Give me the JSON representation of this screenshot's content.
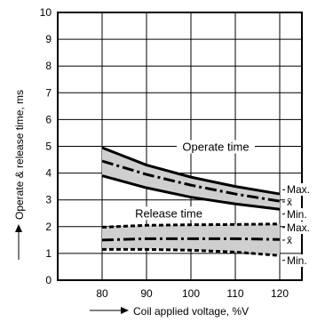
{
  "chart_data": {
    "type": "line",
    "x_ticks": [
      "80",
      "90",
      "100",
      "110",
      "120"
    ],
    "y_ticks": [
      "0",
      "1",
      "2",
      "3",
      "4",
      "5",
      "6",
      "7",
      "8",
      "9",
      "10"
    ],
    "xlim": [
      70,
      125
    ],
    "ylim": [
      0,
      10
    ],
    "xlabel": "Coil applied voltage, %V",
    "ylabel": "Operate & release time, ms",
    "grid": true,
    "groups": [
      {
        "name": "Operate time",
        "fill": "#cfcfcf",
        "x": [
          80,
          90,
          100,
          110,
          120
        ],
        "series": [
          {
            "name": "Max.",
            "style": "solid",
            "y": [
              4.95,
              4.3,
              3.85,
              3.5,
              3.22
            ]
          },
          {
            "name": "x̄",
            "style": "dashdot",
            "y": [
              4.45,
              3.95,
              3.55,
              3.22,
              2.95
            ]
          },
          {
            "name": "Min.",
            "style": "solid",
            "y": [
              3.9,
              3.45,
              3.1,
              2.85,
              2.65
            ]
          }
        ]
      },
      {
        "name": "Release time",
        "fill": "#cfcfcf",
        "x": [
          80,
          90,
          100,
          110,
          120
        ],
        "series": [
          {
            "name": "Max.",
            "style": "dashed",
            "y": [
              1.98,
              2.05,
              2.07,
              2.08,
              2.1
            ]
          },
          {
            "name": "x̄",
            "style": "dashdot",
            "y": [
              1.5,
              1.55,
              1.55,
              1.55,
              1.52
            ]
          },
          {
            "name": "Min.",
            "style": "dashed",
            "y": [
              1.15,
              1.15,
              1.12,
              1.05,
              0.92
            ]
          }
        ]
      }
    ]
  }
}
